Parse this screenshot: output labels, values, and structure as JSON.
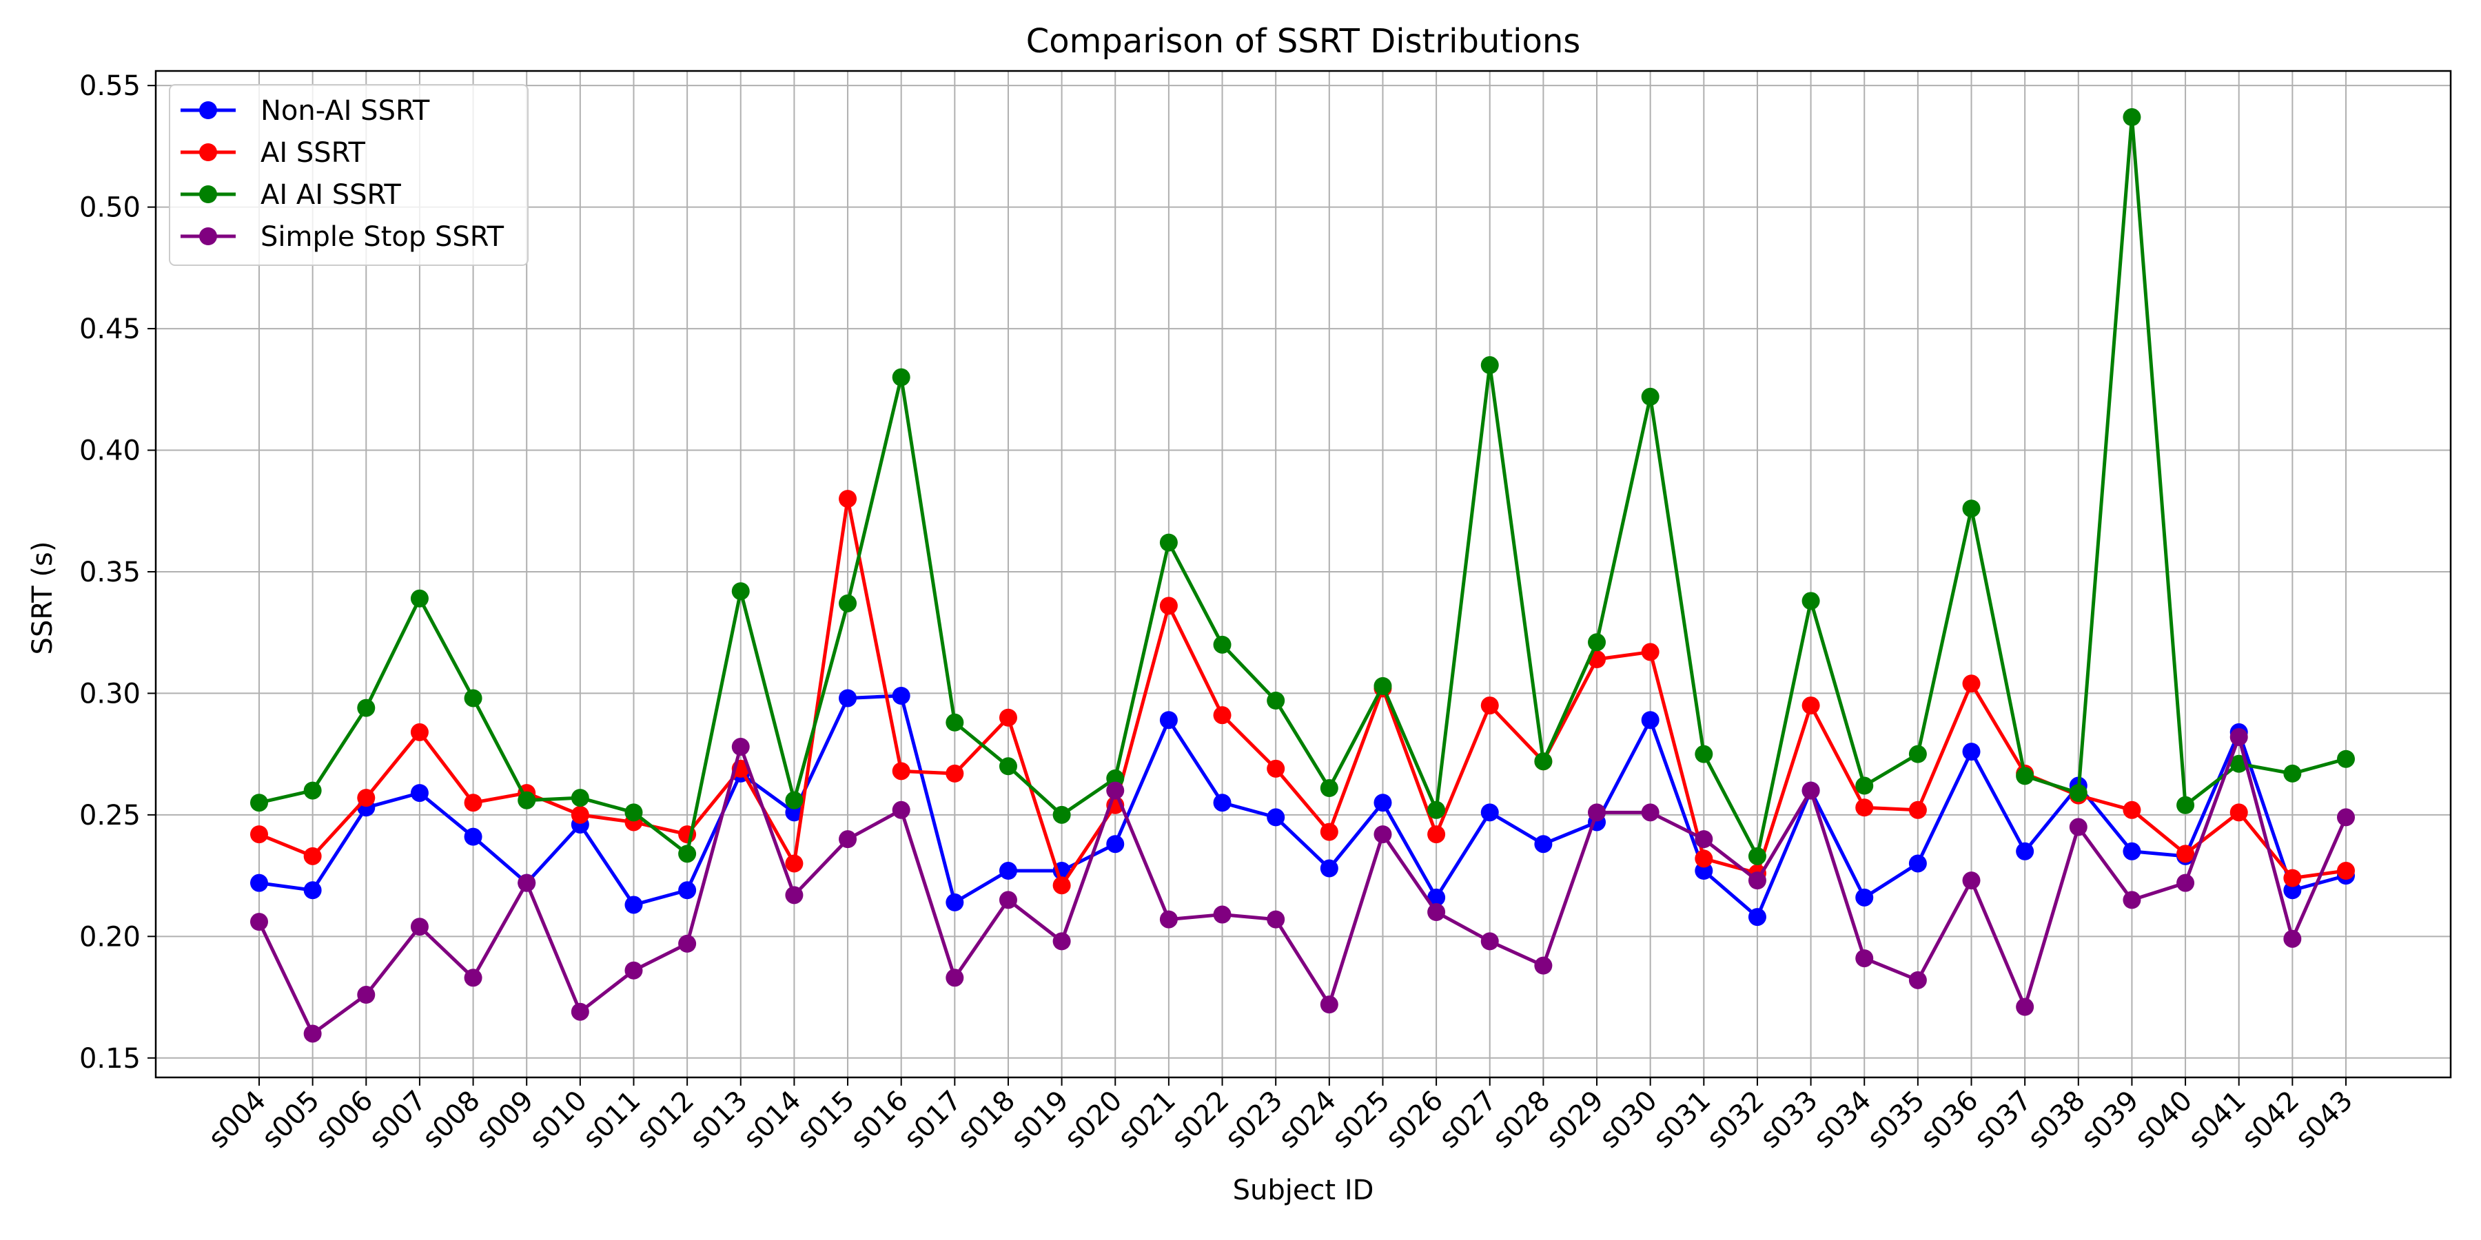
{
  "chart_data": {
    "type": "line",
    "title": "Comparison of SSRT Distributions",
    "xlabel": "Subject ID",
    "ylabel": "SSRT (s)",
    "ylim": [
      0.142,
      0.556
    ],
    "yticks": [
      0.15,
      0.2,
      0.25,
      0.3,
      0.35,
      0.4,
      0.45,
      0.5,
      0.55
    ],
    "ytick_labels": [
      "0.15",
      "0.20",
      "0.25",
      "0.30",
      "0.35",
      "0.40",
      "0.45",
      "0.50",
      "0.55"
    ],
    "grid": true,
    "legend_position": "top-left",
    "categories": [
      "s004",
      "s005",
      "s006",
      "s007",
      "s008",
      "s009",
      "s010",
      "s011",
      "s012",
      "s013",
      "s014",
      "s015",
      "s016",
      "s017",
      "s018",
      "s019",
      "s020",
      "s021",
      "s022",
      "s023",
      "s024",
      "s025",
      "s026",
      "s027",
      "s028",
      "s029",
      "s030",
      "s031",
      "s032",
      "s033",
      "s034",
      "s035",
      "s036",
      "s037",
      "s038",
      "s039",
      "s040",
      "s041",
      "s042",
      "s043"
    ],
    "series": [
      {
        "name": "Non-AI SSRT",
        "color": "#0000ff",
        "values": [
          0.222,
          0.219,
          0.253,
          0.259,
          0.241,
          0.222,
          0.246,
          0.213,
          0.219,
          0.267,
          0.251,
          0.298,
          0.299,
          0.214,
          0.227,
          0.227,
          0.238,
          0.289,
          0.255,
          0.249,
          0.228,
          0.255,
          0.216,
          0.251,
          0.238,
          0.247,
          0.289,
          0.227,
          0.208,
          0.26,
          0.216,
          0.23,
          0.276,
          0.235,
          0.262,
          0.235,
          0.233,
          0.284,
          0.219,
          0.225
        ]
      },
      {
        "name": "AI SSRT",
        "color": "#ff0000",
        "values": [
          0.242,
          0.233,
          0.257,
          0.284,
          0.255,
          0.259,
          0.25,
          0.247,
          0.242,
          0.269,
          0.23,
          0.38,
          0.268,
          0.267,
          0.29,
          0.221,
          0.254,
          0.336,
          0.291,
          0.269,
          0.243,
          0.302,
          0.242,
          0.295,
          0.272,
          0.314,
          0.317,
          0.232,
          0.226,
          0.295,
          0.253,
          0.252,
          0.304,
          0.267,
          0.258,
          0.252,
          0.234,
          0.251,
          0.224,
          0.227
        ]
      },
      {
        "name": "AI AI SSRT",
        "color": "#008000",
        "values": [
          0.255,
          0.26,
          0.294,
          0.339,
          0.298,
          0.256,
          0.257,
          0.251,
          0.234,
          0.342,
          0.256,
          0.337,
          0.43,
          0.288,
          0.27,
          0.25,
          0.265,
          0.362,
          0.32,
          0.297,
          0.261,
          0.303,
          0.252,
          0.435,
          0.272,
          0.321,
          0.422,
          0.275,
          0.233,
          0.338,
          0.262,
          0.275,
          0.376,
          0.266,
          0.259,
          0.537,
          0.254,
          0.271,
          0.267,
          0.273
        ]
      },
      {
        "name": "Simple Stop SSRT",
        "color": "#800080",
        "values": [
          0.206,
          0.16,
          0.176,
          0.204,
          0.183,
          0.222,
          0.169,
          0.186,
          0.197,
          0.278,
          0.217,
          0.24,
          0.252,
          0.183,
          0.215,
          0.198,
          0.26,
          0.207,
          0.209,
          0.207,
          0.172,
          0.242,
          0.21,
          0.198,
          0.188,
          0.251,
          0.251,
          0.24,
          0.223,
          0.26,
          0.191,
          0.182,
          0.223,
          0.171,
          0.245,
          0.215,
          0.222,
          0.282,
          0.199,
          0.249
        ]
      }
    ]
  }
}
